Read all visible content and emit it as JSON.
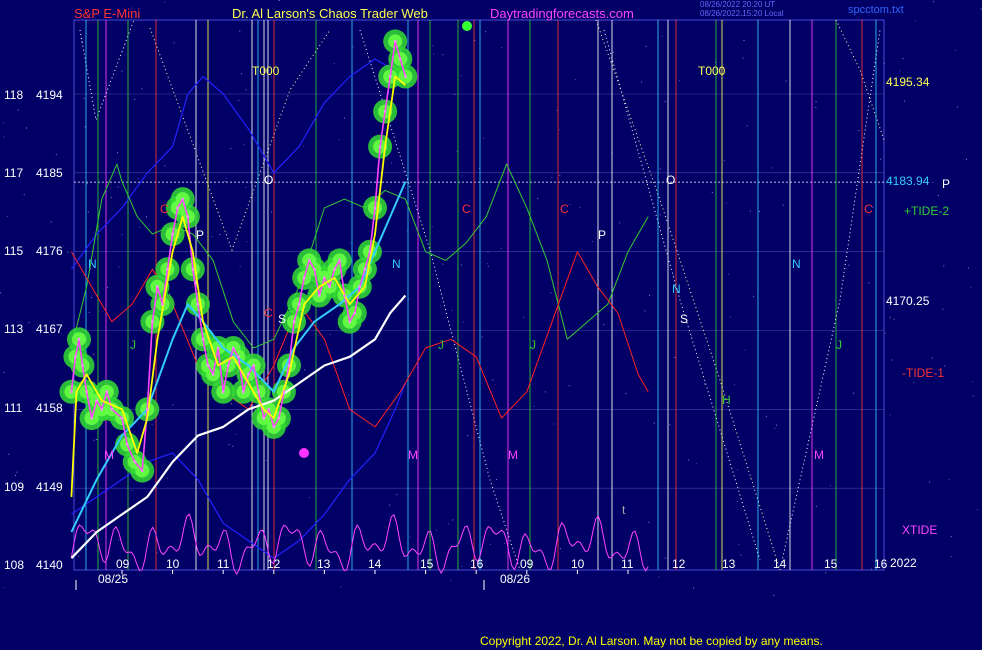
{
  "header": {
    "symbol": "S&P E-Mini",
    "author": "Dr. Al Larson's Chaos Trader Web",
    "site": "Daytradingforecasts.com",
    "time_line1": "08/26/2022 20:20 UT",
    "time_line2": "08/26/2022 15:20 Local",
    "filename": "spcctom.txt"
  },
  "copyright": "Copyright 2022, Dr. Al Larson. May not be copied by any means.",
  "colors": {
    "background": "#000066",
    "price_bars": "#ff44ff",
    "fast_avg": "#ffff00",
    "mid_avg": "#33ccff",
    "slow_avg": "#ffffff",
    "tide_plus_2": "#33cc33",
    "tide_minus_1": "#ff2222",
    "xtide": "#ff44ff",
    "blue_line": "#2222ff",
    "price_line": "#ffffff",
    "frame": "#4a4ad8"
  },
  "chart_data": {
    "type": "line",
    "title": "S&P E-Mini",
    "left_axis": [
      {
        "label": "118",
        "price": "4194"
      },
      {
        "label": "117",
        "price": "4185"
      },
      {
        "label": "115",
        "price": "4176"
      },
      {
        "label": "113",
        "price": "4167"
      },
      {
        "label": "111",
        "price": "4158"
      },
      {
        "label": "109",
        "price": "4149"
      },
      {
        "label": "108",
        "price": "4140"
      }
    ],
    "ylim": [
      4140,
      4203
    ],
    "xlim": [
      7.8,
      16.2
    ],
    "hour_ticks": [
      "09",
      "10",
      "11",
      "12",
      "13",
      "14",
      "15",
      "16",
      "09",
      "10",
      "11",
      "12",
      "13",
      "14",
      "15",
      "16"
    ],
    "date_labels": [
      "08/25",
      "08/26"
    ],
    "year_label": "2022",
    "right_labels": {
      "level_1": "4195.34",
      "level_p": "4183.94",
      "p_marker": "P",
      "level_2": "4170.25",
      "tide_plus_2": "+TIDE-2",
      "tide_minus_1": "-TIDE-1",
      "xtide": "XTIDE"
    },
    "horizontal_line": 4183.94,
    "t000_labels": [
      "T000",
      "T000"
    ],
    "letters_day1": [
      "N",
      "M",
      "J",
      "C",
      "P",
      "O",
      "S",
      "M",
      "C",
      "N",
      "M",
      "J",
      "C"
    ],
    "letters_day2": [
      "C",
      "P",
      "O",
      "N",
      "S",
      "J",
      "H",
      "M",
      "N",
      "J",
      "C",
      "t"
    ],
    "price_series": [
      {
        "t": 8.0,
        "v": 4160
      },
      {
        "t": 8.08,
        "v": 4164
      },
      {
        "t": 8.15,
        "v": 4166
      },
      {
        "t": 8.22,
        "v": 4163
      },
      {
        "t": 8.3,
        "v": 4160
      },
      {
        "t": 8.4,
        "v": 4157
      },
      {
        "t": 8.5,
        "v": 4159
      },
      {
        "t": 8.6,
        "v": 4158
      },
      {
        "t": 8.7,
        "v": 4160
      },
      {
        "t": 8.8,
        "v": 4158
      },
      {
        "t": 9.0,
        "v": 4157
      },
      {
        "t": 9.1,
        "v": 4154
      },
      {
        "t": 9.25,
        "v": 4152
      },
      {
        "t": 9.4,
        "v": 4151
      },
      {
        "t": 9.5,
        "v": 4158
      },
      {
        "t": 9.6,
        "v": 4168
      },
      {
        "t": 9.7,
        "v": 4172
      },
      {
        "t": 9.8,
        "v": 4170
      },
      {
        "t": 9.9,
        "v": 4174
      },
      {
        "t": 10.0,
        "v": 4178
      },
      {
        "t": 10.1,
        "v": 4181
      },
      {
        "t": 10.2,
        "v": 4182
      },
      {
        "t": 10.3,
        "v": 4180
      },
      {
        "t": 10.4,
        "v": 4174
      },
      {
        "t": 10.5,
        "v": 4170
      },
      {
        "t": 10.6,
        "v": 4166
      },
      {
        "t": 10.7,
        "v": 4163
      },
      {
        "t": 10.8,
        "v": 4162
      },
      {
        "t": 10.9,
        "v": 4165
      },
      {
        "t": 11.0,
        "v": 4160
      },
      {
        "t": 11.1,
        "v": 4163
      },
      {
        "t": 11.2,
        "v": 4165
      },
      {
        "t": 11.3,
        "v": 4164
      },
      {
        "t": 11.4,
        "v": 4160
      },
      {
        "t": 11.5,
        "v": 4162
      },
      {
        "t": 11.6,
        "v": 4163
      },
      {
        "t": 11.7,
        "v": 4160
      },
      {
        "t": 11.8,
        "v": 4157
      },
      {
        "t": 11.9,
        "v": 4158
      },
      {
        "t": 12.0,
        "v": 4156
      },
      {
        "t": 12.1,
        "v": 4157
      },
      {
        "t": 12.2,
        "v": 4160
      },
      {
        "t": 12.3,
        "v": 4163
      },
      {
        "t": 12.4,
        "v": 4168
      },
      {
        "t": 12.5,
        "v": 4170
      },
      {
        "t": 12.6,
        "v": 4173
      },
      {
        "t": 12.7,
        "v": 4175
      },
      {
        "t": 12.8,
        "v": 4174
      },
      {
        "t": 12.9,
        "v": 4171
      },
      {
        "t": 13.0,
        "v": 4173
      },
      {
        "t": 13.1,
        "v": 4172
      },
      {
        "t": 13.2,
        "v": 4174
      },
      {
        "t": 13.3,
        "v": 4175
      },
      {
        "t": 13.4,
        "v": 4171
      },
      {
        "t": 13.5,
        "v": 4168
      },
      {
        "t": 13.6,
        "v": 4169
      },
      {
        "t": 13.7,
        "v": 4172
      },
      {
        "t": 13.8,
        "v": 4174
      },
      {
        "t": 13.9,
        "v": 4176
      },
      {
        "t": 14.0,
        "v": 4181
      },
      {
        "t": 14.1,
        "v": 4188
      },
      {
        "t": 14.2,
        "v": 4192
      },
      {
        "t": 14.3,
        "v": 4196
      },
      {
        "t": 14.4,
        "v": 4200
      },
      {
        "t": 14.5,
        "v": 4198
      },
      {
        "t": 14.6,
        "v": 4196
      }
    ],
    "fast_avg": [
      {
        "t": 8.0,
        "v": 4148
      },
      {
        "t": 8.1,
        "v": 4160
      },
      {
        "t": 8.3,
        "v": 4162
      },
      {
        "t": 8.6,
        "v": 4159
      },
      {
        "t": 9.0,
        "v": 4158
      },
      {
        "t": 9.3,
        "v": 4153
      },
      {
        "t": 9.5,
        "v": 4157
      },
      {
        "t": 9.7,
        "v": 4166
      },
      {
        "t": 10.0,
        "v": 4176
      },
      {
        "t": 10.2,
        "v": 4180
      },
      {
        "t": 10.4,
        "v": 4176
      },
      {
        "t": 10.6,
        "v": 4168
      },
      {
        "t": 10.9,
        "v": 4163
      },
      {
        "t": 11.2,
        "v": 4164
      },
      {
        "t": 11.5,
        "v": 4161
      },
      {
        "t": 11.8,
        "v": 4158
      },
      {
        "t": 12.0,
        "v": 4157
      },
      {
        "t": 12.3,
        "v": 4162
      },
      {
        "t": 12.6,
        "v": 4170
      },
      {
        "t": 12.9,
        "v": 4172
      },
      {
        "t": 13.2,
        "v": 4173
      },
      {
        "t": 13.5,
        "v": 4170
      },
      {
        "t": 13.8,
        "v": 4172
      },
      {
        "t": 14.0,
        "v": 4178
      },
      {
        "t": 14.2,
        "v": 4188
      },
      {
        "t": 14.4,
        "v": 4196
      },
      {
        "t": 14.6,
        "v": 4195
      }
    ],
    "mid_avg": [
      {
        "t": 8.0,
        "v": 4144
      },
      {
        "t": 8.5,
        "v": 4150
      },
      {
        "t": 9.0,
        "v": 4155
      },
      {
        "t": 9.5,
        "v": 4158
      },
      {
        "t": 10.0,
        "v": 4166
      },
      {
        "t": 10.3,
        "v": 4170
      },
      {
        "t": 10.6,
        "v": 4168
      },
      {
        "t": 11.0,
        "v": 4165
      },
      {
        "t": 11.5,
        "v": 4163
      },
      {
        "t": 12.0,
        "v": 4160
      },
      {
        "t": 12.4,
        "v": 4165
      },
      {
        "t": 12.8,
        "v": 4168
      },
      {
        "t": 13.3,
        "v": 4170
      },
      {
        "t": 13.7,
        "v": 4172
      },
      {
        "t": 14.0,
        "v": 4176
      },
      {
        "t": 14.3,
        "v": 4180
      },
      {
        "t": 14.6,
        "v": 4184
      }
    ],
    "slow_avg": [
      {
        "t": 8.0,
        "v": 4141
      },
      {
        "t": 8.5,
        "v": 4144
      },
      {
        "t": 9.0,
        "v": 4146
      },
      {
        "t": 9.5,
        "v": 4148
      },
      {
        "t": 10.0,
        "v": 4152
      },
      {
        "t": 10.5,
        "v": 4155
      },
      {
        "t": 11.0,
        "v": 4156
      },
      {
        "t": 11.5,
        "v": 4158
      },
      {
        "t": 12.0,
        "v": 4159
      },
      {
        "t": 12.5,
        "v": 4161
      },
      {
        "t": 13.0,
        "v": 4163
      },
      {
        "t": 13.5,
        "v": 4164
      },
      {
        "t": 14.0,
        "v": 4166
      },
      {
        "t": 14.3,
        "v": 4169
      },
      {
        "t": 14.6,
        "v": 4171
      }
    ],
    "tide_plus_2": [
      {
        "t": 8.0,
        "v": 4165
      },
      {
        "t": 8.3,
        "v": 4172
      },
      {
        "t": 8.6,
        "v": 4182
      },
      {
        "t": 8.9,
        "v": 4186
      },
      {
        "t": 9.0,
        "v": 4184
      },
      {
        "t": 9.3,
        "v": 4180
      },
      {
        "t": 9.6,
        "v": 4178
      },
      {
        "t": 10.0,
        "v": 4179
      },
      {
        "t": 10.4,
        "v": 4178
      },
      {
        "t": 10.8,
        "v": 4175
      },
      {
        "t": 11.2,
        "v": 4168
      },
      {
        "t": 11.6,
        "v": 4165
      },
      {
        "t": 12.0,
        "v": 4166
      },
      {
        "t": 12.5,
        "v": 4172
      },
      {
        "t": 13.0,
        "v": 4181
      },
      {
        "t": 13.4,
        "v": 4182
      },
      {
        "t": 13.8,
        "v": 4181
      },
      {
        "t": 14.2,
        "v": 4183
      },
      {
        "t": 14.6,
        "v": 4182
      },
      {
        "t": 15.0,
        "v": 4176
      },
      {
        "t": 15.4,
        "v": 4175
      },
      {
        "t": 15.8,
        "v": 4177
      },
      {
        "t": 16.2,
        "v": 4180
      },
      {
        "t": 16.6,
        "v": 4186
      },
      {
        "t": 17.0,
        "v": 4181
      },
      {
        "t": 17.4,
        "v": 4175
      },
      {
        "t": 17.8,
        "v": 4166
      },
      {
        "t": 18.2,
        "v": 4168
      },
      {
        "t": 18.6,
        "v": 4170
      },
      {
        "t": 19.0,
        "v": 4176
      },
      {
        "t": 19.4,
        "v": 4180
      }
    ],
    "tide_minus_1": [
      {
        "t": 8.0,
        "v": 4176
      },
      {
        "t": 8.4,
        "v": 4172
      },
      {
        "t": 8.8,
        "v": 4168
      },
      {
        "t": 9.2,
        "v": 4170
      },
      {
        "t": 9.6,
        "v": 4174
      },
      {
        "t": 10.0,
        "v": 4170
      },
      {
        "t": 10.5,
        "v": 4163
      },
      {
        "t": 11.0,
        "v": 4160
      },
      {
        "t": 11.5,
        "v": 4158
      },
      {
        "t": 12.0,
        "v": 4163
      },
      {
        "t": 12.5,
        "v": 4170
      },
      {
        "t": 13.0,
        "v": 4166
      },
      {
        "t": 13.5,
        "v": 4158
      },
      {
        "t": 14.0,
        "v": 4156
      },
      {
        "t": 14.5,
        "v": 4160
      },
      {
        "t": 15.0,
        "v": 4165
      },
      {
        "t": 15.5,
        "v": 4166
      },
      {
        "t": 16.0,
        "v": 4164
      },
      {
        "t": 16.5,
        "v": 4157
      },
      {
        "t": 17.0,
        "v": 4160
      },
      {
        "t": 17.5,
        "v": 4168
      },
      {
        "t": 18.0,
        "v": 4176
      },
      {
        "t": 18.4,
        "v": 4172
      },
      {
        "t": 18.8,
        "v": 4169
      },
      {
        "t": 19.2,
        "v": 4162
      },
      {
        "t": 19.4,
        "v": 4160
      }
    ]
  }
}
